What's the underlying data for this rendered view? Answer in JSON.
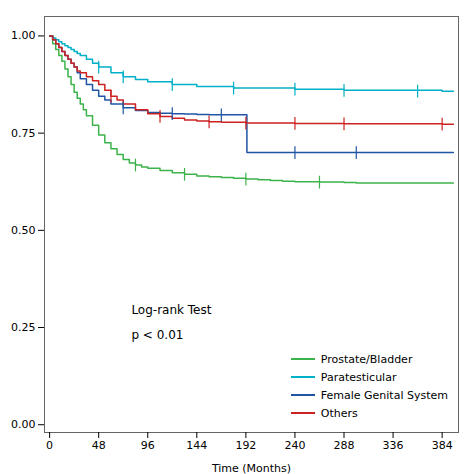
{
  "chart_data": {
    "type": "step",
    "xlabel": "Time (Months)",
    "xlim": [
      -5,
      400
    ],
    "ylim": [
      -0.02,
      1.05
    ],
    "xticks": [
      0,
      48,
      96,
      144,
      192,
      240,
      288,
      336,
      384
    ],
    "yticks": [
      {
        "value": 0.0,
        "label": "0.00"
      },
      {
        "value": 0.25,
        "label": "0.25"
      },
      {
        "value": 0.5,
        "label": "0.50"
      },
      {
        "value": 0.75,
        "label": "0.75"
      },
      {
        "value": 1.0,
        "label": "1.00"
      }
    ],
    "grid": false,
    "legend": "lower right",
    "annotations": [
      {
        "text": "Log-rank Test",
        "x": 80,
        "y": 0.285
      },
      {
        "text": "p < 0.01",
        "x": 80,
        "y": 0.22
      }
    ],
    "series": [
      {
        "name": "Prostate/Bladder",
        "color": "#3cb34a",
        "x": [
          0,
          3,
          6,
          9,
          12,
          15,
          18,
          21,
          24,
          27,
          30,
          33,
          36,
          42,
          48,
          54,
          60,
          66,
          72,
          78,
          84,
          90,
          96,
          108,
          120,
          132,
          144,
          156,
          168,
          180,
          192,
          204,
          216,
          228,
          240,
          264,
          288,
          300,
          384,
          395
        ],
        "values": [
          1.0,
          0.98,
          0.965,
          0.95,
          0.935,
          0.915,
          0.895,
          0.875,
          0.855,
          0.84,
          0.825,
          0.81,
          0.795,
          0.77,
          0.745,
          0.725,
          0.71,
          0.695,
          0.682,
          0.673,
          0.668,
          0.663,
          0.66,
          0.654,
          0.648,
          0.644,
          0.64,
          0.638,
          0.636,
          0.634,
          0.632,
          0.63,
          0.628,
          0.626,
          0.625,
          0.624,
          0.623,
          0.622,
          0.622,
          0.622
        ],
        "censor_x": [
          84,
          132,
          192,
          264
        ],
        "censor_y": [
          0.668,
          0.644,
          0.632,
          0.624
        ]
      },
      {
        "name": "Paratesticular",
        "color": "#00b0c8",
        "x": [
          0,
          3,
          6,
          9,
          12,
          15,
          18,
          21,
          24,
          27,
          30,
          36,
          42,
          48,
          60,
          72,
          84,
          96,
          120,
          144,
          180,
          240,
          288,
          384,
          395
        ],
        "values": [
          1.0,
          0.995,
          0.99,
          0.985,
          0.98,
          0.975,
          0.97,
          0.965,
          0.96,
          0.955,
          0.95,
          0.94,
          0.93,
          0.92,
          0.905,
          0.895,
          0.888,
          0.882,
          0.875,
          0.87,
          0.866,
          0.863,
          0.86,
          0.858,
          0.858
        ],
        "censor_x": [
          48,
          72,
          120,
          180,
          240,
          288,
          360
        ],
        "censor_y": [
          0.92,
          0.895,
          0.875,
          0.866,
          0.863,
          0.86,
          0.858
        ]
      },
      {
        "name": "Female Genital System",
        "color": "#2055a4",
        "x": [
          0,
          3,
          6,
          9,
          12,
          15,
          18,
          21,
          24,
          27,
          30,
          36,
          42,
          48,
          54,
          60,
          72,
          84,
          96,
          108,
          120,
          132,
          144,
          156,
          168,
          180,
          192,
          193,
          210,
          240,
          264,
          288,
          300,
          384,
          395
        ],
        "values": [
          1.0,
          0.99,
          0.98,
          0.97,
          0.96,
          0.95,
          0.94,
          0.93,
          0.92,
          0.905,
          0.89,
          0.875,
          0.86,
          0.845,
          0.835,
          0.825,
          0.815,
          0.808,
          0.803,
          0.801,
          0.8,
          0.799,
          0.798,
          0.797,
          0.797,
          0.797,
          0.797,
          0.7,
          0.7,
          0.7,
          0.7,
          0.7,
          0.7,
          0.7,
          0.7
        ],
        "censor_x": [
          72,
          120,
          168,
          240,
          300
        ],
        "censor_y": [
          0.815,
          0.8,
          0.797,
          0.7,
          0.7
        ]
      },
      {
        "name": "Others",
        "color": "#cc2222",
        "x": [
          0,
          3,
          6,
          9,
          12,
          15,
          18,
          21,
          24,
          27,
          30,
          36,
          42,
          48,
          54,
          60,
          66,
          72,
          84,
          96,
          108,
          120,
          132,
          144,
          156,
          168,
          192,
          240,
          288,
          384,
          395
        ],
        "values": [
          1.0,
          0.99,
          0.98,
          0.97,
          0.96,
          0.95,
          0.94,
          0.93,
          0.92,
          0.91,
          0.905,
          0.895,
          0.885,
          0.875,
          0.86,
          0.845,
          0.835,
          0.825,
          0.81,
          0.8,
          0.793,
          0.788,
          0.784,
          0.781,
          0.779,
          0.778,
          0.776,
          0.775,
          0.774,
          0.773,
          0.773
        ],
        "censor_x": [
          60,
          108,
          156,
          192,
          240,
          288,
          384
        ],
        "censor_y": [
          0.845,
          0.793,
          0.779,
          0.776,
          0.775,
          0.774,
          0.773
        ]
      }
    ]
  }
}
